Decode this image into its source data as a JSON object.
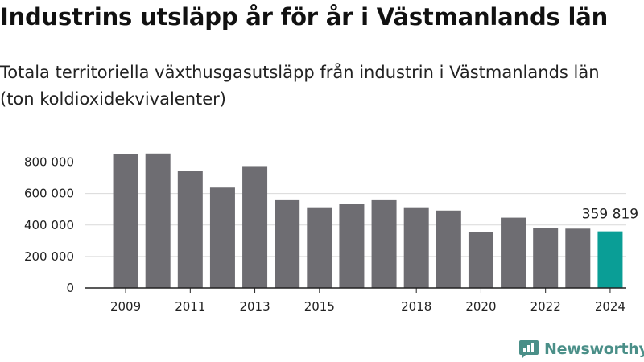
{
  "title": "Industrins utsläpp år för år i Västmanlands län",
  "subtitle": "Totala territoriella växthusgasutsläpp från industrin i Västmanlands län (ton koldioxidekvivalenter)",
  "brand": "Newsworthy",
  "colors": {
    "bar": "#6e6d72",
    "highlight": "#0a9e96",
    "grid": "#d9d9d9",
    "axis": "#222222",
    "brand": "#4a8f88"
  },
  "chart_data": {
    "type": "bar",
    "title": "Industrins utsläpp år för år i Västmanlands län",
    "subtitle": "Totala territoriella växthusgasutsläpp från industrin i Västmanlands län (ton koldioxidekvivalenter)",
    "xlabel": "",
    "ylabel": "",
    "categories": [
      "2009",
      "2010",
      "2011",
      "2012",
      "2013",
      "2014",
      "2015",
      "2016",
      "2017",
      "2018",
      "2019",
      "2020",
      "2021",
      "2022",
      "2023",
      "2024"
    ],
    "values": [
      850000,
      855000,
      745000,
      638000,
      775000,
      563000,
      513000,
      532000,
      563000,
      513000,
      492000,
      355000,
      447000,
      380000,
      377000,
      359819
    ],
    "ylim": [
      0,
      900000
    ],
    "yticks": [
      0,
      200000,
      400000,
      600000,
      800000
    ],
    "ytick_labels": [
      "0",
      "200 000",
      "400 000",
      "600 000",
      "800 000"
    ],
    "xtick_labels": [
      "2009",
      "2011",
      "2013",
      "2015",
      "2018",
      "2020",
      "2022",
      "2024"
    ],
    "highlight": {
      "category": "2024",
      "label": "359 819"
    },
    "grid": true,
    "legend": "none"
  }
}
